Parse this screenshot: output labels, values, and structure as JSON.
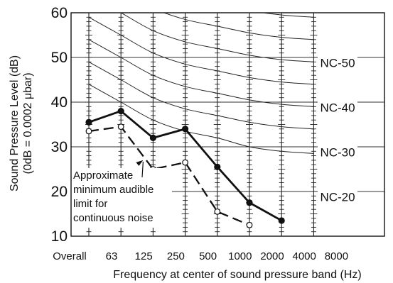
{
  "chart_data": {
    "type": "line",
    "ylabel_line1": "Sound Pressure Level (dB)",
    "ylabel_line2": "(0dB = 0.0002 μbar)",
    "xlabel": "Frequency at center of sound pressure band (Hz)",
    "x_categories": [
      "Overall",
      "63",
      "125",
      "250",
      "500",
      "1000",
      "2000",
      "4000",
      "8000"
    ],
    "y_ticks": [
      10,
      20,
      30,
      40,
      50,
      60
    ],
    "ylim": [
      10,
      60
    ],
    "grid": true,
    "series": [
      {
        "style": "solid",
        "marker": "filled",
        "points": [
          {
            "x": "63",
            "y": 35.5
          },
          {
            "x": "125",
            "y": 38
          },
          {
            "x": "250",
            "y": 32
          },
          {
            "x": "500",
            "y": 34
          },
          {
            "x": "1000",
            "y": 25.5
          },
          {
            "x": "2000",
            "y": 17.5
          },
          {
            "x": "4000",
            "y": 13.5
          }
        ]
      },
      {
        "style": "dashed",
        "marker": "open",
        "points": [
          {
            "x": "63",
            "y": 33.5
          },
          {
            "x": "125",
            "y": 34.5
          },
          {
            "x": "250",
            "y": 25
          },
          {
            "x": "500",
            "y": 26.5
          },
          {
            "x": "1000",
            "y": 15.5
          },
          {
            "x": "2000",
            "y": 12.5
          }
        ]
      }
    ],
    "nc_curves": [
      {
        "y": [
          44,
          40,
          36,
          33.5,
          32,
          30,
          29,
          28.5
        ]
      },
      {
        "y": [
          49,
          45,
          41,
          38.5,
          37,
          35.5,
          34.5,
          34
        ]
      },
      {
        "y": [
          54,
          50,
          46,
          43.5,
          42,
          40.5,
          39.5,
          39
        ]
      },
      {
        "y": [
          59,
          55,
          51,
          48.5,
          47,
          45.5,
          44.5,
          44
        ]
      },
      {
        "y": [
          64,
          60,
          56,
          53.5,
          52,
          50.5,
          49.5,
          49
        ]
      },
      {
        "y": [
          69,
          65,
          61,
          58.5,
          57,
          55.5,
          54.5,
          54
        ]
      },
      {
        "y": [
          74,
          70,
          66,
          63.5,
          62,
          60.5,
          59.5,
          59
        ]
      },
      {
        "y": [
          79,
          75,
          71,
          68.5,
          67,
          65.5,
          64.5,
          64
        ]
      },
      {
        "y": [
          84,
          80,
          76,
          73.5,
          72,
          70.5,
          69.5,
          69
        ]
      },
      {
        "y": [
          89,
          85,
          81,
          78.5,
          77,
          75.5,
          74.5,
          74
        ]
      },
      {
        "y": [
          94,
          90,
          86,
          83.5,
          82,
          80.5,
          79.5,
          79
        ]
      }
    ],
    "nc_labels": [
      {
        "text": "NC-50",
        "y": 49
      },
      {
        "text": "NC-40",
        "y": 39
      },
      {
        "text": "NC-30",
        "y": 29
      },
      {
        "text": "NC-20",
        "y": 19
      }
    ],
    "annotation": {
      "lines": [
        "Approximate",
        "minimum audible",
        "limit for",
        "continuous noise"
      ],
      "arrow_target": {
        "x": "250",
        "y": 27
      }
    }
  }
}
